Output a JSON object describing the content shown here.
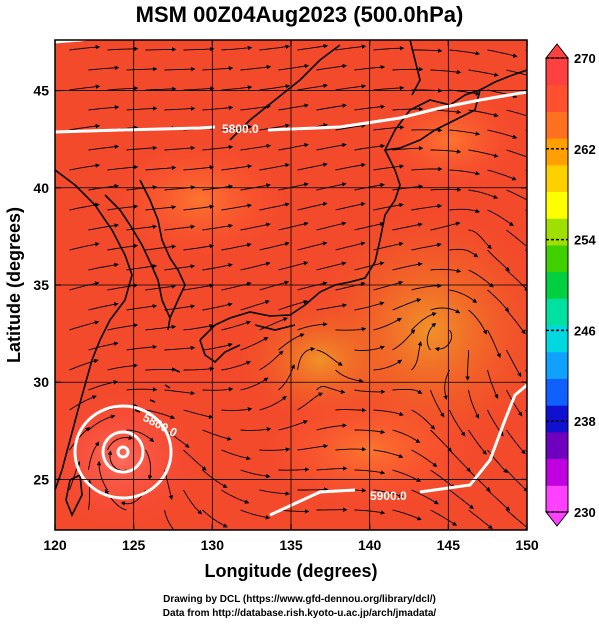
{
  "title": "MSM 00Z04Aug2023 (500.0hPa)",
  "axes": {
    "xlabel": "Longitude (degrees)",
    "ylabel": "Latitude  (degrees)",
    "xticks": [
      "120",
      "125",
      "130",
      "135",
      "140",
      "145",
      "150"
    ],
    "yticks": [
      "25",
      "30",
      "35",
      "40",
      "45"
    ],
    "xlim": [
      120,
      150
    ],
    "ylim": [
      22.4,
      47.6
    ]
  },
  "colorbar": {
    "min": 230,
    "max": 270,
    "labels": [
      "270",
      "262",
      "254",
      "246",
      "238",
      "230"
    ],
    "colors": [
      "#ff40ff",
      "#c000e0",
      "#7000c0",
      "#1010d0",
      "#1060ff",
      "#10a0ff",
      "#00d8e0",
      "#00e0a0",
      "#00d040",
      "#40d000",
      "#a0e000",
      "#ffff00",
      "#ffd000",
      "#ffa000",
      "#ff7020",
      "#ff5030",
      "#ff4040"
    ]
  },
  "contours": [
    {
      "label": "5800.0"
    },
    {
      "label": "5800.0"
    },
    {
      "label": "5900.0"
    }
  ],
  "credits": [
    "Drawing by DCL (https://www.gfd-dennou.org/library/dcl/)",
    "Data from http://database.rish.kyoto-u.ac.jp/arch/jmadata/"
  ]
}
